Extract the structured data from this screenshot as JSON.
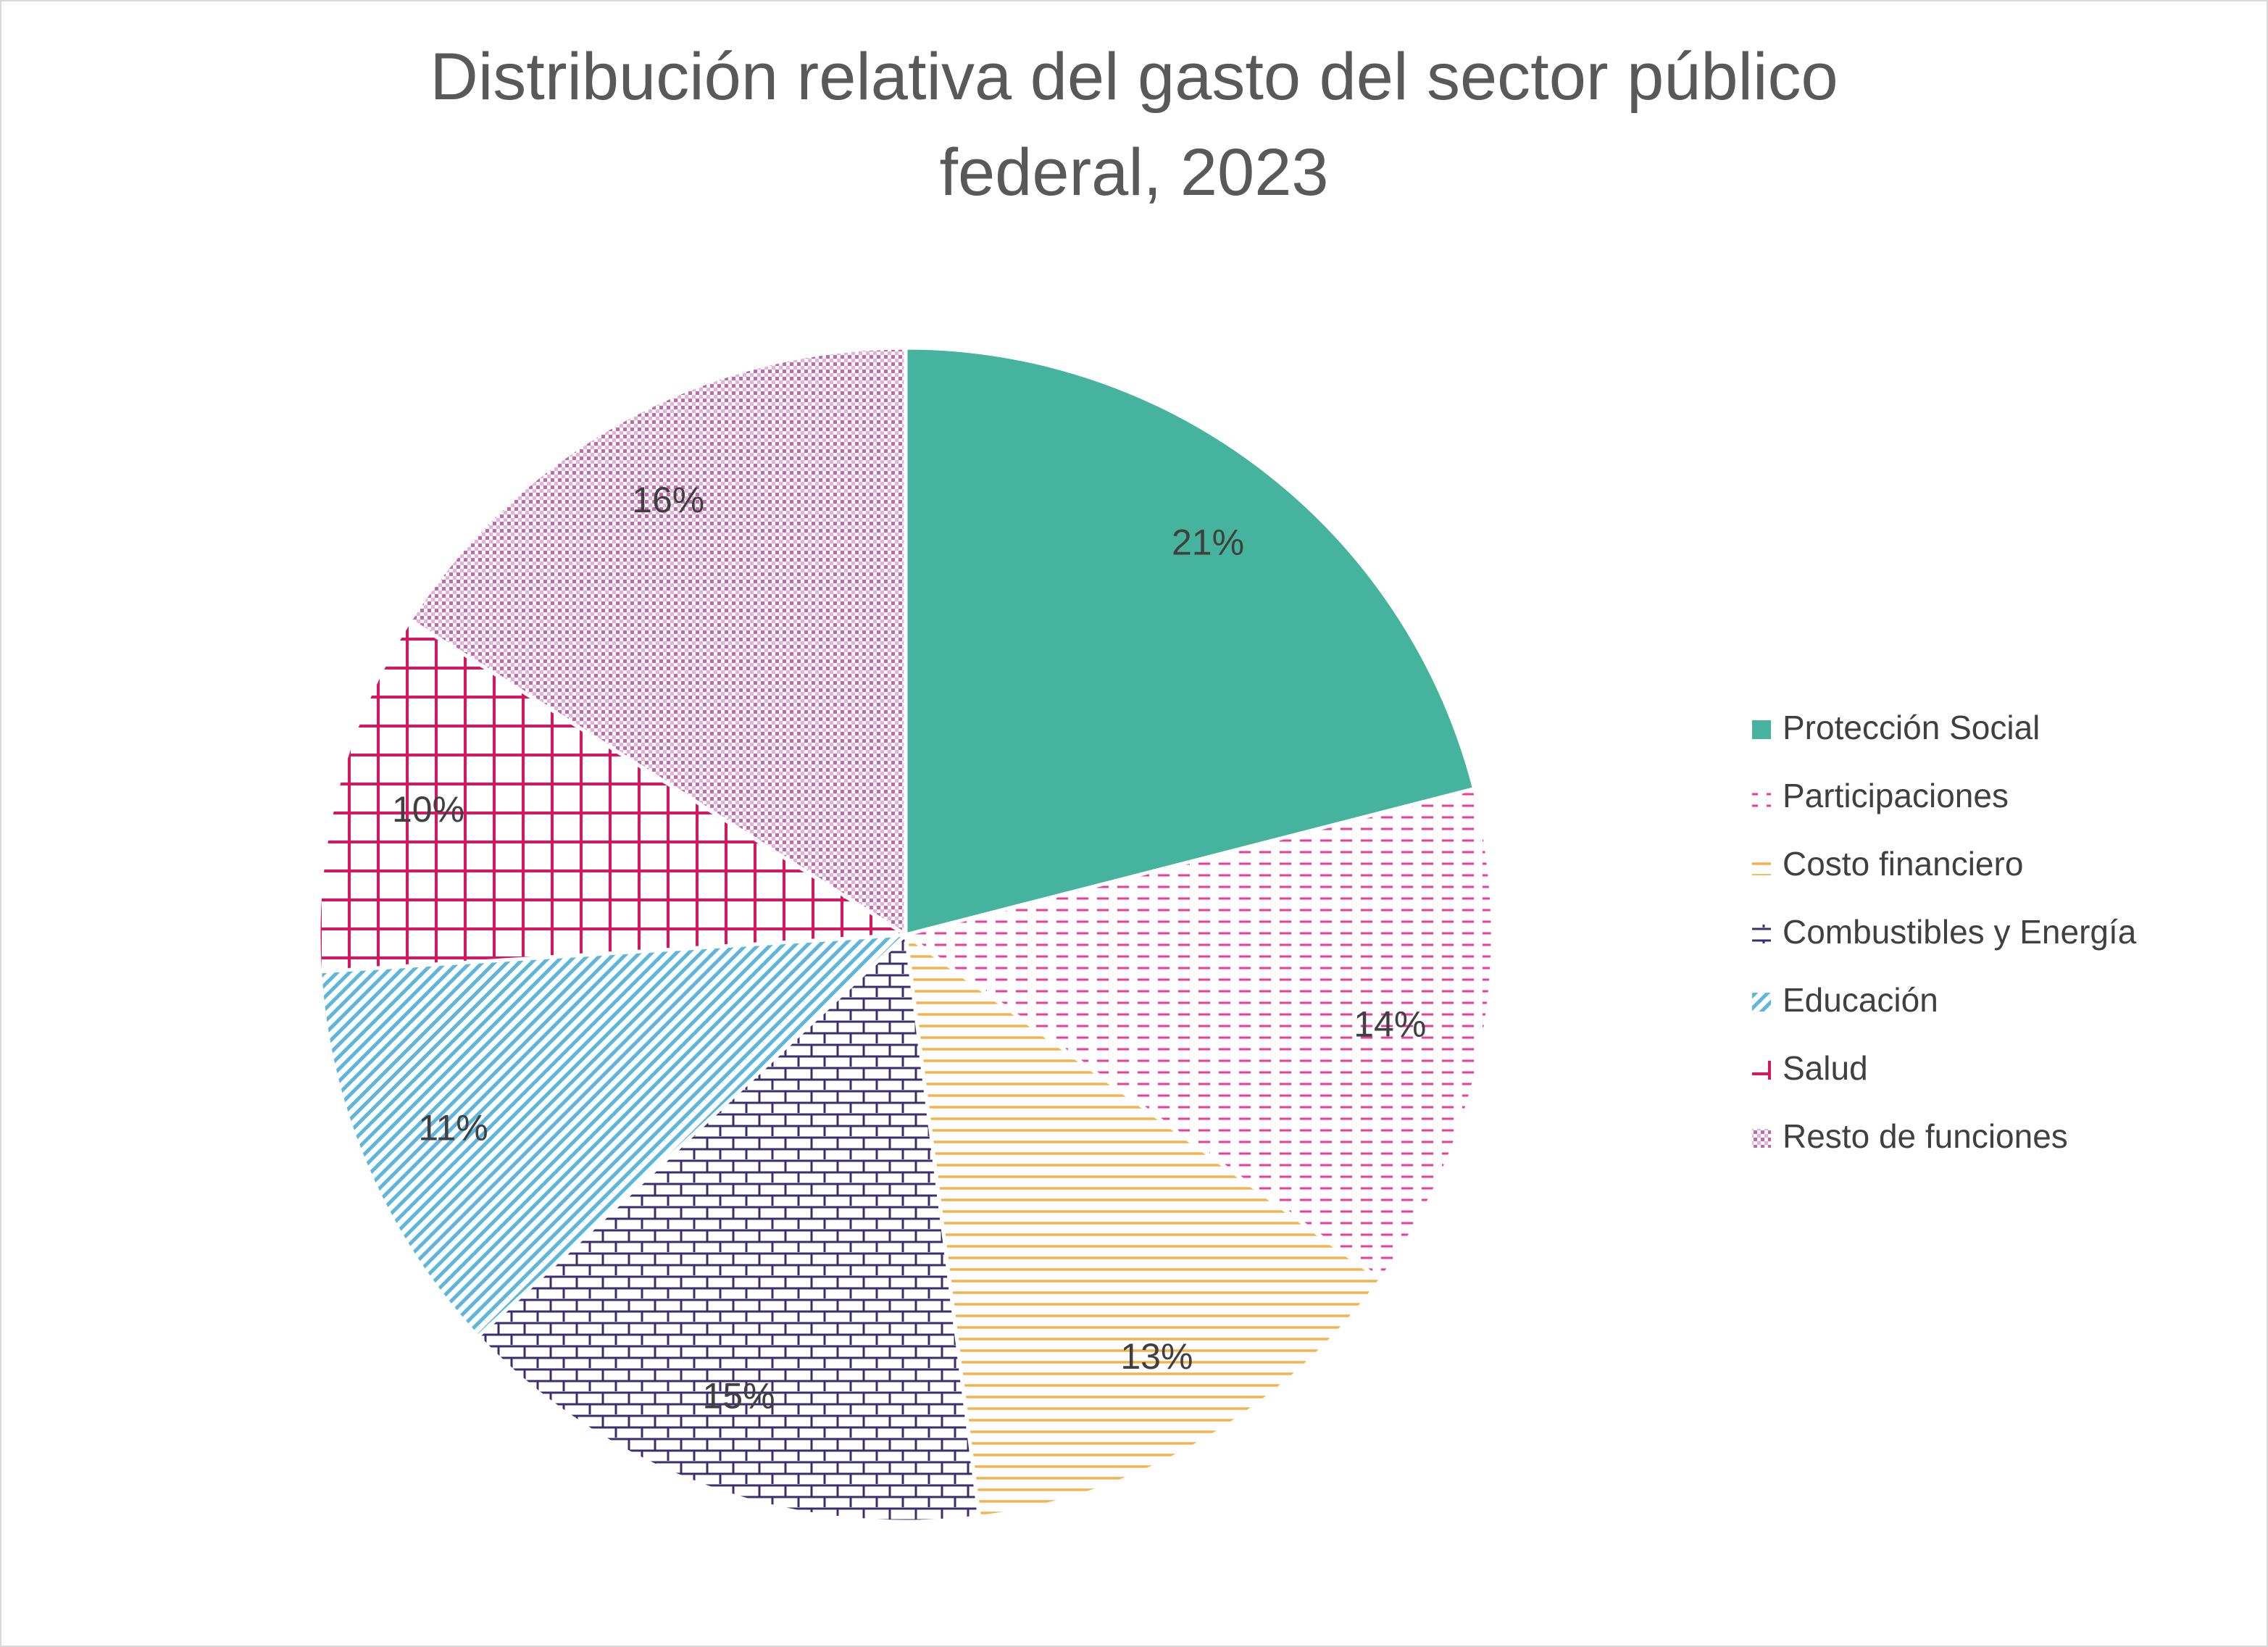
{
  "chart_data": {
    "type": "pie",
    "title": "Distribución relativa del gasto del sector público federal, 2023",
    "title_lines": [
      "Distribución relativa del gasto del sector público",
      "federal, 2023"
    ],
    "legend_position": "right",
    "slices": [
      {
        "name": "Protección Social",
        "value": 21,
        "label": "21%",
        "color": "#45b39d",
        "pattern": "solid"
      },
      {
        "name": "Participaciones",
        "value": 14,
        "label": "14%",
        "color": "#e83e9f",
        "pattern": "dashed-horizontal"
      },
      {
        "name": "Costo financiero",
        "value": 13,
        "label": "13%",
        "color": "#f4b350",
        "pattern": "horizontal-lines"
      },
      {
        "name": "Combustibles y Energía",
        "value": 15,
        "label": "15%",
        "color": "#3c2f6b",
        "pattern": "brick"
      },
      {
        "name": "Educación",
        "value": 11,
        "label": "11%",
        "color": "#5cb6dd",
        "pattern": "diagonal-lines"
      },
      {
        "name": "Salud",
        "value": 10,
        "label": "10%",
        "color": "#d6175f",
        "pattern": "grid"
      },
      {
        "name": "Resto de funciones",
        "value": 16,
        "label": "16%",
        "color": "#c566b1",
        "pattern": "dotted-grid"
      }
    ]
  }
}
